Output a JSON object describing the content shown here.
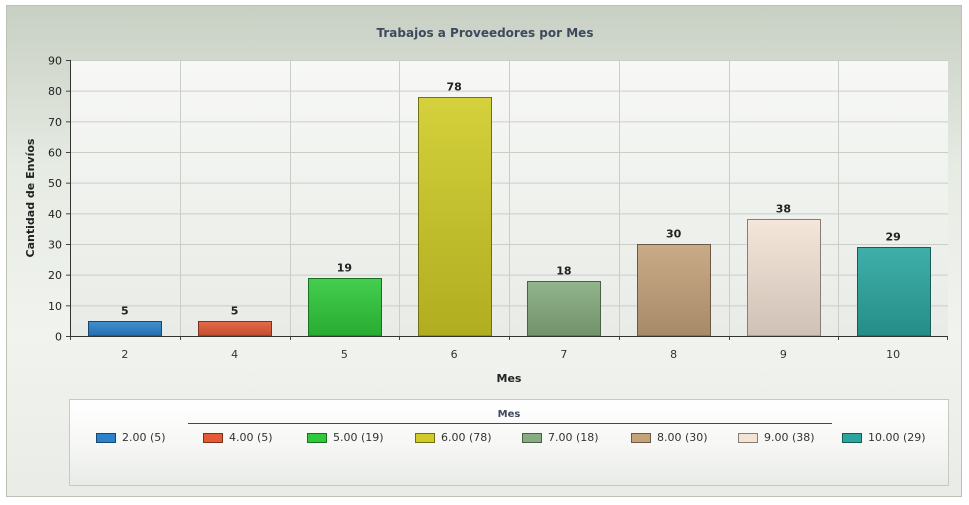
{
  "chart_data": {
    "type": "bar",
    "title": "Trabajos a Proveedores por Mes",
    "xlabel": "Mes",
    "ylabel": "Cantidad de Envíos",
    "ylim": [
      0,
      90
    ],
    "yticks": [
      0,
      10,
      20,
      30,
      40,
      50,
      60,
      70,
      80,
      90
    ],
    "categories": [
      "2",
      "4",
      "5",
      "6",
      "7",
      "8",
      "9",
      "10"
    ],
    "values": [
      5,
      5,
      19,
      78,
      18,
      30,
      38,
      29
    ],
    "data_labels": [
      "5",
      "5",
      "19",
      "78",
      "18",
      "30",
      "38",
      "29"
    ],
    "colors": [
      "#2b82cc",
      "#e35a35",
      "#2fc93a",
      "#cfcc26",
      "#86ac7f",
      "#c4a27a",
      "#f3e3d5",
      "#2ba69f"
    ],
    "grid": true,
    "legend": {
      "title": "Mes",
      "placement": "bottom",
      "items": [
        "2.00 (5)",
        "4.00 (5)",
        "5.00 (19)",
        "6.00 (78)",
        "7.00 (18)",
        "8.00 (30)",
        "9.00 (38)",
        "10.00 (29)"
      ]
    }
  }
}
